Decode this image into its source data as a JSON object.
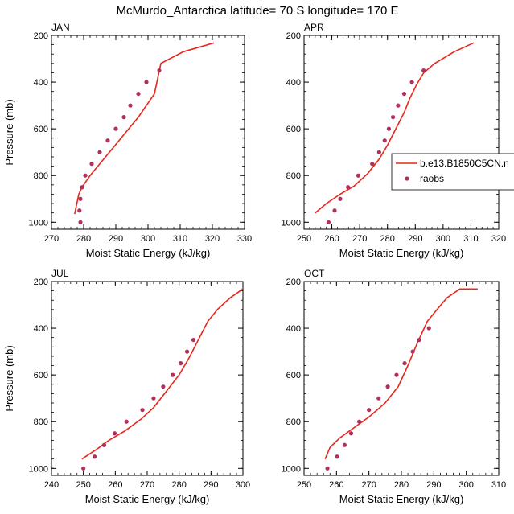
{
  "title": "McMurdo_Antarctica  latitude= 70 S longitude= 170 E",
  "legend": {
    "model_name": "b.e13.B1850C5CN.n",
    "obs_name": "raobs"
  },
  "colors": {
    "model_line": "#e8261c",
    "obs_marker": "#b0305e"
  },
  "chart_data": [
    {
      "type": "line",
      "panel_label": "JAN",
      "xlabel": "Moist Static Energy (kJ/kg)",
      "ylabel": "Pressure (mb)",
      "xlim": [
        270,
        330
      ],
      "ylim": [
        1030,
        200
      ],
      "yscale": "linear",
      "y_inverted": true,
      "xticks": [
        270,
        280,
        290,
        300,
        310,
        320,
        330
      ],
      "yticks": [
        200,
        400,
        600,
        800,
        1000
      ],
      "series": [
        {
          "name": "b.e13.B1850C5CN.n",
          "kind": "line",
          "x": [
            277.2,
            277.8,
            278.5,
            279.5,
            282,
            285,
            288,
            291,
            294,
            297,
            299.5,
            302,
            304,
            311,
            320.5
          ],
          "y": [
            965,
            925,
            880,
            850,
            800,
            750,
            700,
            650,
            600,
            550,
            500,
            450,
            320,
            270,
            232
          ]
        },
        {
          "name": "raobs",
          "kind": "scatter",
          "x": [
            279,
            278.7,
            279,
            279.5,
            280.5,
            282.5,
            285,
            287.5,
            290,
            292.5,
            294.5,
            297,
            299.5,
            303.5
          ],
          "y": [
            1000,
            950,
            900,
            850,
            800,
            750,
            700,
            650,
            600,
            550,
            500,
            450,
            400,
            350
          ]
        }
      ]
    },
    {
      "type": "line",
      "panel_label": "APR",
      "xlabel": "Moist Static Energy (kJ/kg)",
      "ylabel": "",
      "xlim": [
        250,
        320
      ],
      "ylim": [
        1030,
        200
      ],
      "yscale": "linear",
      "y_inverted": true,
      "xticks": [
        250,
        260,
        270,
        280,
        290,
        300,
        310,
        320
      ],
      "yticks": [
        200,
        400,
        600,
        800,
        1000
      ],
      "series": [
        {
          "name": "b.e13.B1850C5CN.n",
          "kind": "line",
          "x": [
            254,
            258,
            263,
            268,
            273,
            277,
            280,
            283,
            286,
            288,
            290.5,
            293,
            297,
            304,
            311
          ],
          "y": [
            960,
            920,
            880,
            845,
            790,
            730,
            670,
            600,
            530,
            470,
            410,
            360,
            320,
            270,
            232
          ]
        },
        {
          "name": "raobs",
          "kind": "scatter",
          "x": [
            258.8,
            261,
            263,
            265.8,
            269.5,
            274.5,
            277,
            279,
            280.5,
            282,
            283.8,
            286,
            288.8,
            293
          ],
          "y": [
            1000,
            950,
            900,
            850,
            800,
            750,
            700,
            650,
            600,
            550,
            500,
            450,
            400,
            350
          ]
        }
      ]
    },
    {
      "type": "line",
      "panel_label": "JUL",
      "xlabel": "Moist Static Energy (kJ/kg)",
      "ylabel": "Pressure (mb)",
      "xlim": [
        240,
        300
      ],
      "ylim": [
        1030,
        200
      ],
      "yscale": "linear",
      "y_inverted": true,
      "xticks": [
        240,
        250,
        260,
        270,
        280,
        290,
        300
      ],
      "yticks": [
        200,
        400,
        600,
        800,
        1000
      ],
      "series": [
        {
          "name": "b.e13.B1850C5CN.n",
          "kind": "line",
          "x": [
            249.5,
            254,
            258,
            263,
            268,
            272,
            276,
            280,
            283,
            286,
            289,
            292,
            296,
            300
          ],
          "y": [
            960,
            920,
            880,
            840,
            790,
            740,
            670,
            600,
            530,
            450,
            370,
            320,
            270,
            232
          ]
        },
        {
          "name": "raobs",
          "kind": "scatter",
          "x": [
            250,
            253.5,
            256.5,
            259.8,
            263.5,
            268.5,
            272,
            275,
            278,
            280.5,
            282.5,
            284.5
          ],
          "y": [
            1000,
            950,
            900,
            850,
            800,
            750,
            700,
            650,
            600,
            550,
            500,
            450
          ]
        }
      ]
    },
    {
      "type": "line",
      "panel_label": "OCT",
      "xlabel": "Moist Static Energy (kJ/kg)",
      "ylabel": "",
      "xlim": [
        250,
        310
      ],
      "ylim": [
        1030,
        200
      ],
      "yscale": "linear",
      "y_inverted": true,
      "xticks": [
        250,
        260,
        270,
        280,
        290,
        300,
        310
      ],
      "yticks": [
        200,
        400,
        600,
        800,
        1000
      ],
      "series": [
        {
          "name": "b.e13.B1850C5CN.n",
          "kind": "line",
          "x": [
            256.5,
            258,
            261,
            265,
            270,
            275,
            279,
            282,
            285,
            288,
            291,
            294,
            298,
            303.5
          ],
          "y": [
            960,
            910,
            870,
            830,
            780,
            720,
            650,
            560,
            460,
            370,
            320,
            270,
            232,
            232
          ]
        },
        {
          "name": "raobs",
          "kind": "scatter",
          "x": [
            257.2,
            260.2,
            262.5,
            264.5,
            267,
            270,
            273,
            275.8,
            278.5,
            281,
            283.5,
            285.5,
            288.5
          ],
          "y": [
            1000,
            950,
            900,
            850,
            800,
            750,
            700,
            650,
            600,
            550,
            500,
            450,
            400
          ]
        }
      ]
    }
  ]
}
